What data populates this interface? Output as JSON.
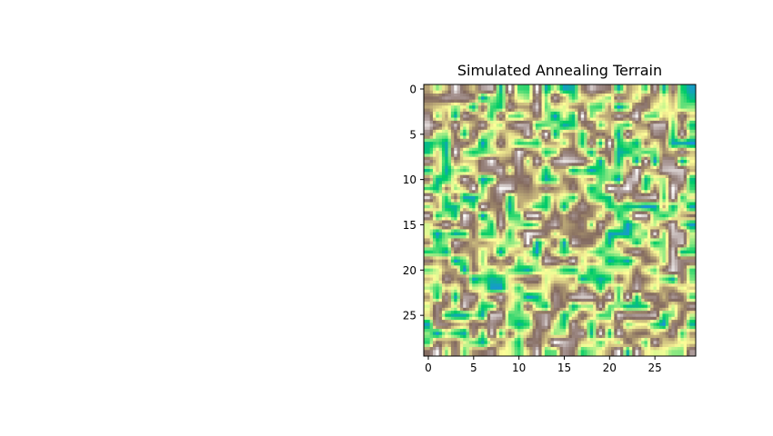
{
  "chart_data": {
    "type": "heatmap",
    "title": "Simulated Annealing Terrain",
    "xlabel": "",
    "ylabel": "",
    "grid": false,
    "colormap": "terrain",
    "colormap_stops": [
      "#1a93d9",
      "#00cc66",
      "#80e67f",
      "#ffff99",
      "#c2b07a",
      "#836a5f",
      "#a89694",
      "#ffffff"
    ],
    "xlim": [
      -0.5,
      29.5
    ],
    "ylim": [
      29.5,
      -0.5
    ],
    "x_ticks": [
      0,
      5,
      10,
      15,
      20,
      25
    ],
    "y_ticks": [
      0,
      5,
      10,
      15,
      20,
      25
    ],
    "x_tick_labels": [
      "0",
      "5",
      "10",
      "15",
      "20",
      "25"
    ],
    "y_tick_labels": [
      "0",
      "5",
      "10",
      "15",
      "20",
      "25"
    ],
    "grid_size": [
      30,
      30
    ],
    "value_range": [
      0,
      1
    ],
    "seed": 7,
    "note_values": "random terrain field, smooth (bicubic) interpolation"
  }
}
